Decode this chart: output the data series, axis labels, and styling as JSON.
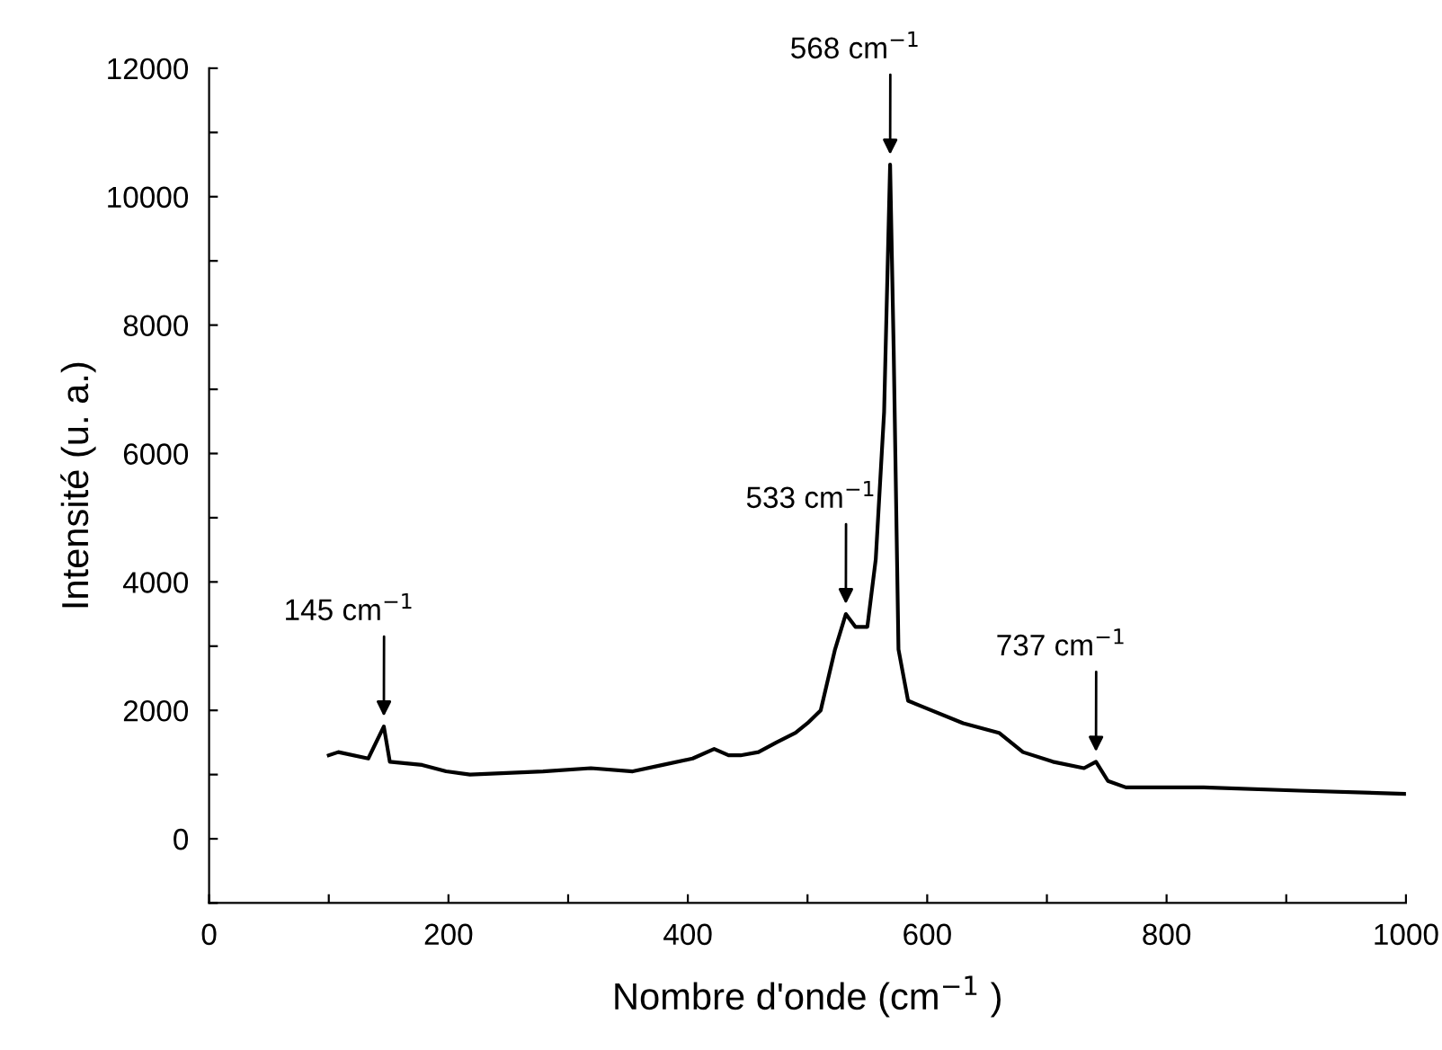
{
  "chart_data": {
    "type": "line",
    "xlabel": "Nombre d'onde (cm$^{−1}$ )",
    "ylabel": "Intensité (u. a.)",
    "xlim": [
      0,
      1000
    ],
    "ylim": [
      -1000,
      12000
    ],
    "xticks": [
      0,
      {
        "value": 100,
        "label": null
      },
      200,
      {
        "value": 300,
        "label": null
      },
      400,
      {
        "value": 500,
        "label": null
      },
      600,
      {
        "value": 700,
        "label": null
      },
      800,
      {
        "value": 900,
        "label": null
      },
      1000
    ],
    "yticks": [
      {
        "value": -1000,
        "label": null
      },
      0,
      {
        "value": 1000,
        "label": null
      },
      2000,
      {
        "value": 3000,
        "label": null
      },
      4000,
      {
        "value": 5000,
        "label": null
      },
      6000,
      {
        "value": 7000,
        "label": null
      },
      8000,
      {
        "value": 9000,
        "label": null
      },
      10000,
      {
        "value": 11000,
        "label": null
      },
      12000
    ],
    "grid": false,
    "legend": false,
    "marker": "none",
    "line_style": "solid",
    "series": [
      {
        "color": "#000000",
        "x": [
          100,
          108,
          133,
          146,
          151,
          178,
          198,
          218,
          279,
          319,
          354,
          379,
          404,
          422,
          434,
          444,
          459,
          474,
          490,
          500,
          511,
          523,
          532,
          540,
          550,
          557,
          564,
          569,
          572,
          576,
          584,
          597,
          630,
          660,
          680,
          705,
          731,
          741,
          751,
          766,
          831,
          911,
          1000
        ],
        "values": [
          1300,
          1350,
          1250,
          1750,
          1200,
          1150,
          1050,
          1000,
          1050,
          1100,
          1050,
          1150,
          1250,
          1400,
          1300,
          1300,
          1350,
          1500,
          1650,
          1800,
          2000,
          2950,
          3500,
          3300,
          3300,
          4350,
          6650,
          10500,
          7600,
          2950,
          2150,
          2050,
          1800,
          1650,
          1350,
          1200,
          1100,
          1200,
          900,
          800,
          800,
          750,
          700
        ]
      }
    ],
    "annotations": [
      {
        "text": "145 cm$^{−1}$",
        "x": 146,
        "y": 1750
      },
      {
        "text": "533 cm$^{−1}$",
        "x": 532,
        "y": 3500
      },
      {
        "text": "568 cm$^{−1}$",
        "x": 569,
        "y": 10500
      },
      {
        "text": "737 cm$^{−1}$",
        "x": 741,
        "y": 1200
      }
    ]
  }
}
